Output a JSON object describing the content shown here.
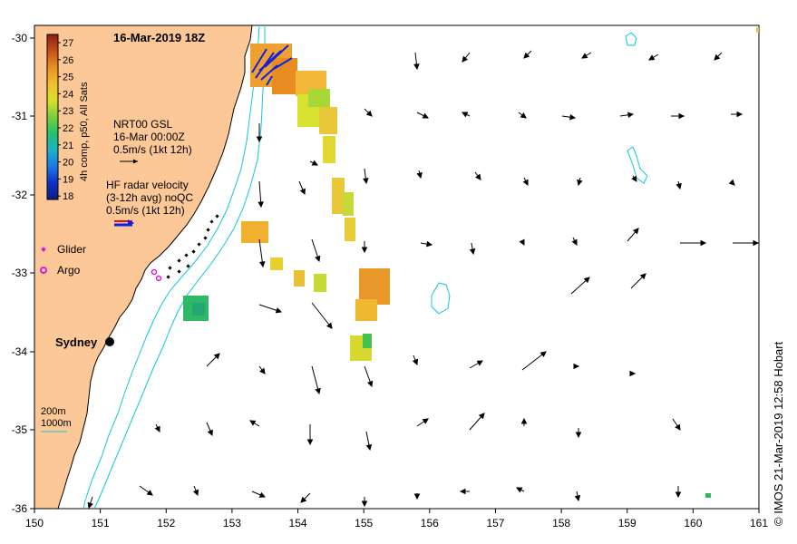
{
  "title": "16-Mar-2019 18Z",
  "colorbar": {
    "label": "4h comp, p50, All Sats",
    "min": 18,
    "max": 27,
    "ticks": [
      "27",
      "26",
      "25",
      "24",
      "23",
      "22",
      "21",
      "20",
      "19",
      "18"
    ],
    "colors": [
      "#0a1f7a",
      "#1030c8",
      "#1a78e8",
      "#19b4c8",
      "#22c070",
      "#7ad03a",
      "#d8e02a",
      "#f0c030",
      "#e89020",
      "#c85018",
      "#8c2010"
    ]
  },
  "nrt_legend": {
    "line1": "NRT00 GSL",
    "line2": "16-Mar 00:00Z",
    "line3": "0.5m/s (1kt 12h)"
  },
  "hf_legend": {
    "line1": "HF radar velocity",
    "line2": "(3-12h avg) noQC",
    "line3": "0.5m/s (1kt 12h)"
  },
  "markers": {
    "glider": "Glider",
    "argo": "Argo",
    "glider_color": "#d020d0",
    "argo_color": "#d020d0"
  },
  "place": {
    "sydney": "Sydney"
  },
  "bathy_legend": {
    "line1": "200m",
    "line2": "1000m",
    "color": "#10c8d8"
  },
  "credit": "© IMOS 21-Mar-2019 12:58 Hobart",
  "axes": {
    "x_ticks": [
      "150",
      "151",
      "152",
      "153",
      "154",
      "155",
      "156",
      "157",
      "158",
      "159",
      "160",
      "161"
    ],
    "y_ticks": [
      "-30",
      "-31",
      "-32",
      "-33",
      "-34",
      "-35",
      "-36"
    ],
    "xlim": [
      150,
      161
    ],
    "ylim": [
      -36,
      -29.85
    ]
  },
  "colors": {
    "land": "#fcc898",
    "coast": "#000000",
    "arrow": "#000000",
    "hf_arrow": "#1020e0"
  }
}
